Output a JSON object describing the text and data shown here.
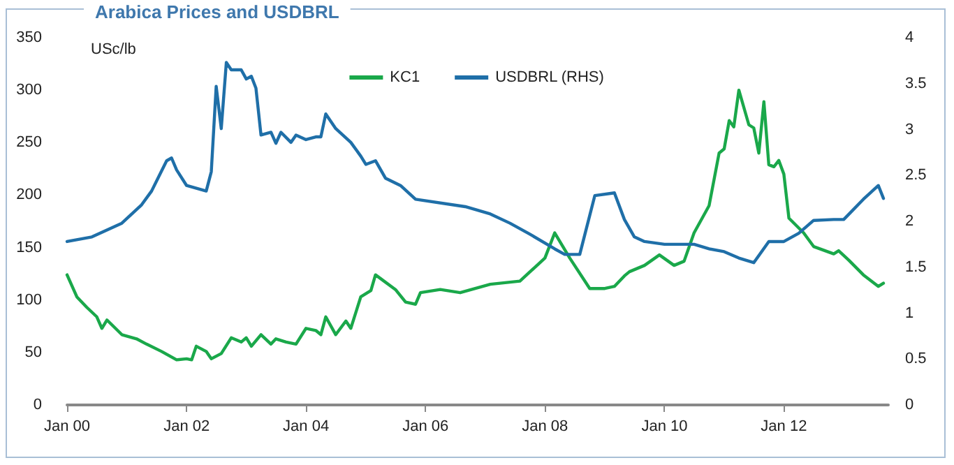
{
  "chart_data": {
    "type": "line",
    "title": "Arabica Prices and USDBRL",
    "ylabel": "USc/lb",
    "xlim": [
      "2000-01",
      "2013-10"
    ],
    "xticks": [
      {
        "value": "2000-01",
        "label": "Jan 00"
      },
      {
        "value": "2002-01",
        "label": "Jan 02"
      },
      {
        "value": "2004-01",
        "label": "Jan 04"
      },
      {
        "value": "2006-01",
        "label": "Jan 06"
      },
      {
        "value": "2008-01",
        "label": "Jan 08"
      },
      {
        "value": "2010-01",
        "label": "Jan 10"
      },
      {
        "value": "2012-01",
        "label": "Jan 12"
      }
    ],
    "ylim": [
      0,
      350
    ],
    "yticks": [
      0,
      50,
      100,
      150,
      200,
      250,
      300,
      350
    ],
    "y2lim": [
      0,
      4
    ],
    "y2ticks": [
      0,
      0.5,
      1,
      1.5,
      2,
      2.5,
      3,
      3.5,
      4
    ],
    "grid": false,
    "legend": "top",
    "marker": "none",
    "line_style": "solid",
    "series": [
      {
        "name": "KC1",
        "color": "#1aa84a",
        "x": [
          "2000-01",
          "2000-03",
          "2000-05",
          "2000-07",
          "2000-08",
          "2000-09",
          "2000-12",
          "2001-03",
          "2001-05",
          "2001-08",
          "2001-11",
          "2002-01",
          "2002-02",
          "2002-03",
          "2002-05",
          "2002-06",
          "2002-08",
          "2002-10",
          "2002-12",
          "2003-01",
          "2003-02",
          "2003-04",
          "2003-06",
          "2003-07",
          "2003-09",
          "2003-11",
          "2004-01",
          "2004-03",
          "2004-04",
          "2004-05",
          "2004-07",
          "2004-09",
          "2004-10",
          "2004-12",
          "2005-02",
          "2005-03",
          "2005-07",
          "2005-09",
          "2005-11",
          "2005-12",
          "2006-04",
          "2006-08",
          "2007-02",
          "2007-08",
          "2008-01",
          "2008-03",
          "2008-06",
          "2008-10",
          "2009-01",
          "2009-03",
          "2009-05",
          "2009-06",
          "2009-09",
          "2009-12",
          "2010-03",
          "2010-05",
          "2010-07",
          "2010-10",
          "2010-12",
          "2011-01",
          "2011-02",
          "2011-03",
          "2011-04",
          "2011-06",
          "2011-07",
          "2011-08",
          "2011-09",
          "2011-10",
          "2011-11",
          "2011-12",
          "2012-01",
          "2012-02",
          "2012-05",
          "2012-07",
          "2012-11",
          "2012-12",
          "2013-02",
          "2013-05",
          "2013-08",
          "2013-09"
        ],
        "values": [
          124,
          103,
          93,
          84,
          73,
          81,
          67,
          63,
          58,
          51,
          43,
          44,
          43,
          56,
          51,
          44,
          49,
          64,
          60,
          64,
          56,
          67,
          58,
          63,
          60,
          58,
          73,
          71,
          67,
          84,
          67,
          80,
          73,
          103,
          109,
          124,
          110,
          98,
          96,
          107,
          110,
          107,
          115,
          118,
          140,
          164,
          140,
          111,
          111,
          113,
          123,
          127,
          133,
          143,
          133,
          137,
          164,
          190,
          240,
          244,
          271,
          265,
          300,
          267,
          264,
          240,
          289,
          229,
          227,
          233,
          220,
          178,
          164,
          151,
          144,
          147,
          138,
          124,
          113,
          116
        ]
      },
      {
        "name": "USDBRL (RHS)",
        "color": "#1f6fa8",
        "axis": "y2",
        "x": [
          "2000-01",
          "2000-06",
          "2000-12",
          "2001-04",
          "2001-06",
          "2001-09",
          "2001-10",
          "2001-11",
          "2002-01",
          "2002-05",
          "2002-06",
          "2002-07",
          "2002-08",
          "2002-09",
          "2002-10",
          "2002-12",
          "2003-01",
          "2003-02",
          "2003-03",
          "2003-04",
          "2003-06",
          "2003-07",
          "2003-08",
          "2003-10",
          "2003-11",
          "2004-01",
          "2004-03",
          "2004-04",
          "2004-05",
          "2004-07",
          "2004-10",
          "2004-12",
          "2005-01",
          "2005-03",
          "2005-05",
          "2005-08",
          "2005-11",
          "2006-09",
          "2007-02",
          "2007-06",
          "2007-10",
          "2008-03",
          "2008-05",
          "2008-08",
          "2008-11",
          "2009-03",
          "2009-05",
          "2009-07",
          "2009-09",
          "2010-01",
          "2010-07",
          "2010-10",
          "2011-01",
          "2011-04",
          "2011-07",
          "2011-10",
          "2012-01",
          "2012-04",
          "2012-07",
          "2012-11",
          "2013-01",
          "2013-05",
          "2013-08",
          "2013-09"
        ],
        "values": [
          1.78,
          1.83,
          1.98,
          2.18,
          2.33,
          2.66,
          2.69,
          2.56,
          2.39,
          2.33,
          2.54,
          3.47,
          3.01,
          3.73,
          3.65,
          3.65,
          3.55,
          3.58,
          3.45,
          2.94,
          2.97,
          2.85,
          2.97,
          2.86,
          2.94,
          2.89,
          2.92,
          2.92,
          3.17,
          3.01,
          2.86,
          2.71,
          2.62,
          2.66,
          2.47,
          2.39,
          2.24,
          2.16,
          2.08,
          1.98,
          1.86,
          1.7,
          1.64,
          1.64,
          2.28,
          2.31,
          2.02,
          1.83,
          1.78,
          1.75,
          1.75,
          1.7,
          1.67,
          1.6,
          1.55,
          1.78,
          1.78,
          1.87,
          2.01,
          2.02,
          2.02,
          2.24,
          2.39,
          2.25
        ]
      }
    ]
  }
}
